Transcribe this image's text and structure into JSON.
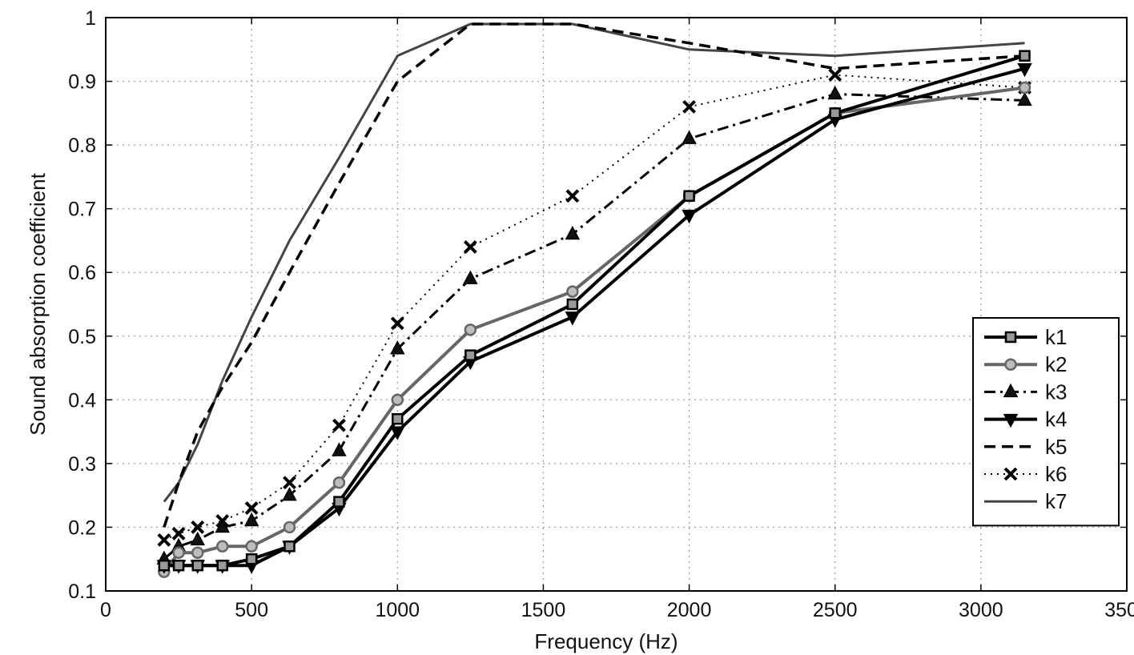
{
  "chart_data": {
    "type": "line",
    "title": "",
    "xlabel": "Frequency (Hz)",
    "ylabel": "Sound absorption coefficient",
    "xlim": [
      0,
      3500
    ],
    "ylim": [
      0.1,
      1
    ],
    "grid": true,
    "legend_position": "lower-right",
    "x_ticks": [
      0,
      500,
      1000,
      1500,
      2000,
      2500,
      3000,
      3500
    ],
    "y_ticks": [
      0.1,
      0.2,
      0.3,
      0.4,
      0.5,
      0.6,
      0.7,
      0.8,
      0.9,
      1
    ],
    "x_tick_labels": [
      "0",
      "500",
      "1000",
      "1500",
      "2000",
      "2500",
      "3000",
      "3500"
    ],
    "y_tick_labels": [
      "0.1",
      "0.2",
      "0.3",
      "0.4",
      "0.5",
      "0.6",
      "0.7",
      "0.8",
      "0.9",
      "1"
    ],
    "x": [
      200,
      250,
      315,
      400,
      500,
      630,
      800,
      1000,
      1250,
      1600,
      2000,
      2500,
      3150
    ],
    "series": [
      {
        "name": "k1",
        "values": [
          0.14,
          0.14,
          0.14,
          0.14,
          0.15,
          0.17,
          0.24,
          0.37,
          0.47,
          0.55,
          0.72,
          0.85,
          0.94
        ],
        "color": "#000000",
        "dash": "solid",
        "marker": "square",
        "width": 4
      },
      {
        "name": "k2",
        "values": [
          0.13,
          0.16,
          0.16,
          0.17,
          0.17,
          0.2,
          0.27,
          0.4,
          0.51,
          0.57,
          0.72,
          0.85,
          0.89
        ],
        "color": "#666666",
        "dash": "solid",
        "marker": "circle",
        "width": 4
      },
      {
        "name": "k3",
        "values": [
          0.15,
          0.17,
          0.18,
          0.2,
          0.21,
          0.25,
          0.32,
          0.48,
          0.59,
          0.66,
          0.81,
          0.88,
          0.87
        ],
        "color": "#000000",
        "dash": "dashdot",
        "marker": "triangle-up",
        "width": 3
      },
      {
        "name": "k4",
        "values": [
          0.14,
          0.14,
          0.14,
          0.14,
          0.14,
          0.17,
          0.23,
          0.35,
          0.46,
          0.53,
          0.69,
          0.84,
          0.92
        ],
        "color": "#000000",
        "dash": "solid",
        "marker": "triangle-down",
        "width": 4
      },
      {
        "name": "k5",
        "values": [
          0.2,
          0.27,
          0.35,
          0.42,
          0.49,
          0.6,
          0.74,
          0.9,
          0.99,
          0.99,
          0.96,
          0.92,
          0.94
        ],
        "color": "#000000",
        "dash": "dashed",
        "marker": "none",
        "width": 3.5
      },
      {
        "name": "k6",
        "values": [
          0.18,
          0.19,
          0.2,
          0.21,
          0.23,
          0.27,
          0.36,
          0.52,
          0.64,
          0.72,
          0.86,
          0.91,
          0.89
        ],
        "color": "#000000",
        "dash": "dotted",
        "marker": "x",
        "width": 2
      },
      {
        "name": "k7",
        "values": [
          0.24,
          0.27,
          0.33,
          0.43,
          0.53,
          0.65,
          0.78,
          0.94,
          0.99,
          0.99,
          0.95,
          0.94,
          0.96
        ],
        "color": "#444444",
        "dash": "solid",
        "marker": "none",
        "width": 3
      }
    ]
  }
}
